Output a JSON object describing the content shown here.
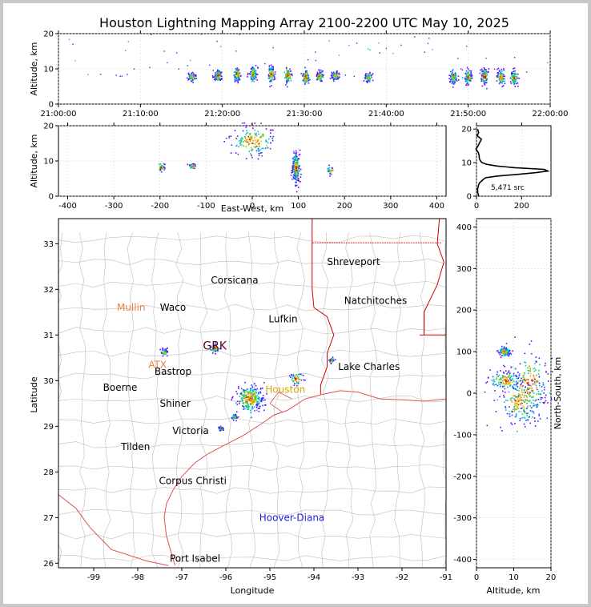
{
  "title": "Houston Lightning Mapping Array 2100-2200 UTC May 10, 2025",
  "colors": {
    "point_palette": [
      "#6a00ff",
      "#1f3cff",
      "#00b4ff",
      "#00d26a",
      "#c8d200",
      "#ff8c00",
      "#e60000"
    ],
    "coast": "#e05050",
    "county": "#bdbdbd",
    "state": "#d00000",
    "site_orange": "#f08040",
    "site_gold": "#d8a800",
    "site_blue": "#2020e0",
    "site_maroon": "#600020"
  },
  "chart_data": [
    {
      "type": "scatter",
      "panel": "altitude-time",
      "ylabel": "Altitude, km",
      "xlabel": "",
      "xlim": [
        "21:00:00",
        "22:00:00"
      ],
      "ylim": [
        0,
        20
      ],
      "xticks": [
        "21:00:00",
        "21:10:00",
        "21:20:00",
        "21:30:00",
        "21:40:00",
        "21:50:00",
        "22:00:00"
      ],
      "yticks": [
        0,
        10,
        20
      ],
      "grid": true,
      "clusters": [
        {
          "t_min": 16.3,
          "alt": 7.6,
          "spread": 0.9
        },
        {
          "t_min": 19.5,
          "alt": 8.0,
          "spread": 1.2
        },
        {
          "t_min": 21.8,
          "alt": 8.3,
          "spread": 1.5
        },
        {
          "t_min": 23.8,
          "alt": 8.5,
          "spread": 1.8
        },
        {
          "t_min": 26.0,
          "alt": 8.4,
          "spread": 1.8
        },
        {
          "t_min": 28.0,
          "alt": 8.1,
          "spread": 1.8
        },
        {
          "t_min": 30.2,
          "alt": 7.6,
          "spread": 1.6
        },
        {
          "t_min": 31.9,
          "alt": 7.8,
          "spread": 1.1
        },
        {
          "t_min": 33.8,
          "alt": 8.0,
          "spread": 1.0
        },
        {
          "t_min": 37.8,
          "alt": 7.4,
          "spread": 1.0
        },
        {
          "t_min": 48.2,
          "alt": 7.6,
          "spread": 1.4
        },
        {
          "t_min": 50.0,
          "alt": 7.7,
          "spread": 1.6
        },
        {
          "t_min": 52.0,
          "alt": 8.0,
          "spread": 1.8
        },
        {
          "t_min": 54.0,
          "alt": 7.8,
          "spread": 1.8
        },
        {
          "t_min": 55.6,
          "alt": 7.4,
          "spread": 1.6
        }
      ]
    },
    {
      "type": "scatter",
      "panel": "altitude-east-west",
      "xlabel": "East-West, km",
      "ylabel": "Altitude, km",
      "xlim": [
        -420,
        420
      ],
      "ylim": [
        0,
        20
      ],
      "xticks": [
        -400,
        -300,
        -200,
        -100,
        0,
        100,
        200,
        300,
        400
      ],
      "yticks": [
        0,
        10,
        20
      ],
      "grid": true,
      "clusters": [
        {
          "x": -197,
          "alt": 8.0,
          "spread": 1.0
        },
        {
          "x": -130,
          "alt": 8.5,
          "spread": 0.5
        },
        {
          "x": 0,
          "alt": 15.5,
          "spread": 3.0
        },
        {
          "x": 95,
          "alt": 8.0,
          "spread": 3.0
        },
        {
          "x": 170,
          "alt": 7.2,
          "spread": 0.8
        }
      ]
    },
    {
      "type": "line",
      "panel": "altitude-histogram",
      "annotation": "5,471 src",
      "xlim": [
        0,
        330
      ],
      "ylim": [
        0,
        21
      ],
      "xticks": [
        0,
        200
      ],
      "yticks": [
        0,
        10,
        20
      ],
      "grid": true,
      "alt_km": [
        0,
        0.5,
        1,
        1.5,
        2,
        2.5,
        3,
        3.5,
        4,
        4.5,
        5,
        5.5,
        6,
        6.5,
        7,
        7.5,
        8,
        8.5,
        9,
        9.5,
        10,
        10.5,
        11,
        11.5,
        12,
        13,
        14,
        15,
        16,
        17,
        18,
        19,
        20
      ],
      "count": [
        10,
        8,
        6,
        5,
        5,
        6,
        8,
        10,
        14,
        22,
        30,
        40,
        90,
        180,
        260,
        316,
        300,
        170,
        90,
        45,
        25,
        18,
        14,
        12,
        12,
        11,
        11,
        13,
        12,
        12,
        11,
        12,
        10
      ]
    },
    {
      "type": "map",
      "panel": "plan-view",
      "xlabel": "Longitude",
      "ylabel": "Latitude",
      "xlim": [
        -99.8,
        -91
      ],
      "ylim": [
        25.9,
        33.55
      ],
      "xticks": [
        -99,
        -98,
        -97,
        -96,
        -95,
        -94,
        -93,
        -92,
        -91
      ],
      "yticks": [
        26,
        27,
        28,
        29,
        30,
        31,
        32,
        33
      ],
      "cities": [
        {
          "name": "Shreveport",
          "lon": -93.1,
          "lat": 32.6,
          "kind": "city"
        },
        {
          "name": "Corsicana",
          "lon": -95.8,
          "lat": 32.2,
          "kind": "city"
        },
        {
          "name": "Natchitoches",
          "lon": -92.6,
          "lat": 31.75,
          "kind": "city"
        },
        {
          "name": "Mullin",
          "lon": -98.15,
          "lat": 31.6,
          "kind": "site_orange"
        },
        {
          "name": "Waco",
          "lon": -97.2,
          "lat": 31.6,
          "kind": "city"
        },
        {
          "name": "Lufkin",
          "lon": -94.7,
          "lat": 31.35,
          "kind": "city"
        },
        {
          "name": "GRK",
          "lon": -96.25,
          "lat": 30.75,
          "kind": "site_maroon"
        },
        {
          "name": "ATX",
          "lon": -97.55,
          "lat": 30.35,
          "kind": "site_orange"
        },
        {
          "name": "Bastrop",
          "lon": -97.2,
          "lat": 30.2,
          "kind": "city"
        },
        {
          "name": "Lake Charles",
          "lon": -92.75,
          "lat": 30.3,
          "kind": "city"
        },
        {
          "name": "Boerne",
          "lon": -98.4,
          "lat": 29.85,
          "kind": "city"
        },
        {
          "name": "Houston",
          "lon": -94.65,
          "lat": 29.8,
          "kind": "site_gold"
        },
        {
          "name": "Shiner",
          "lon": -97.15,
          "lat": 29.5,
          "kind": "city"
        },
        {
          "name": "Victoria",
          "lon": -96.8,
          "lat": 28.9,
          "kind": "city"
        },
        {
          "name": "Tilden",
          "lon": -98.05,
          "lat": 28.55,
          "kind": "city"
        },
        {
          "name": "Corpus Christi",
          "lon": -96.75,
          "lat": 27.8,
          "kind": "city"
        },
        {
          "name": "Hoover-Diana",
          "lon": -94.5,
          "lat": 27.0,
          "kind": "site_blue"
        },
        {
          "name": "Port Isabel",
          "lon": -96.7,
          "lat": 26.1,
          "kind": "city"
        }
      ],
      "clusters": [
        {
          "lon": -97.4,
          "lat": 30.62,
          "spread": 0.06
        },
        {
          "lon": -96.25,
          "lat": 30.72,
          "spread": 0.08
        },
        {
          "lon": -95.45,
          "lat": 29.6,
          "spread": 0.25
        },
        {
          "lon": -94.4,
          "lat": 30.05,
          "spread": 0.12
        },
        {
          "lon": -93.6,
          "lat": 30.45,
          "spread": 0.05
        },
        {
          "lon": -95.8,
          "lat": 29.2,
          "spread": 0.05
        },
        {
          "lon": -96.1,
          "lat": 28.95,
          "spread": 0.04
        }
      ]
    },
    {
      "type": "scatter",
      "panel": "north-south-altitude",
      "xlabel": "Altitude, km",
      "ylabel": "North-South, km",
      "xlim": [
        0,
        20
      ],
      "ylim": [
        -420,
        420
      ],
      "xticks": [
        0,
        10,
        20
      ],
      "yticks": [
        -400,
        -300,
        -200,
        -100,
        0,
        100,
        200,
        300,
        400
      ],
      "grid": true,
      "clusters": [
        {
          "alt": 7.8,
          "y": 30,
          "spread_alt": 3.5,
          "spread_y": 18
        },
        {
          "alt": 12,
          "y": -20,
          "spread_alt": 5,
          "spread_y": 45
        },
        {
          "alt": 7.5,
          "y": 100,
          "spread_alt": 1.2,
          "spread_y": 8
        },
        {
          "alt": 14,
          "y": 20,
          "spread_alt": 4,
          "spread_y": 60
        }
      ]
    }
  ]
}
